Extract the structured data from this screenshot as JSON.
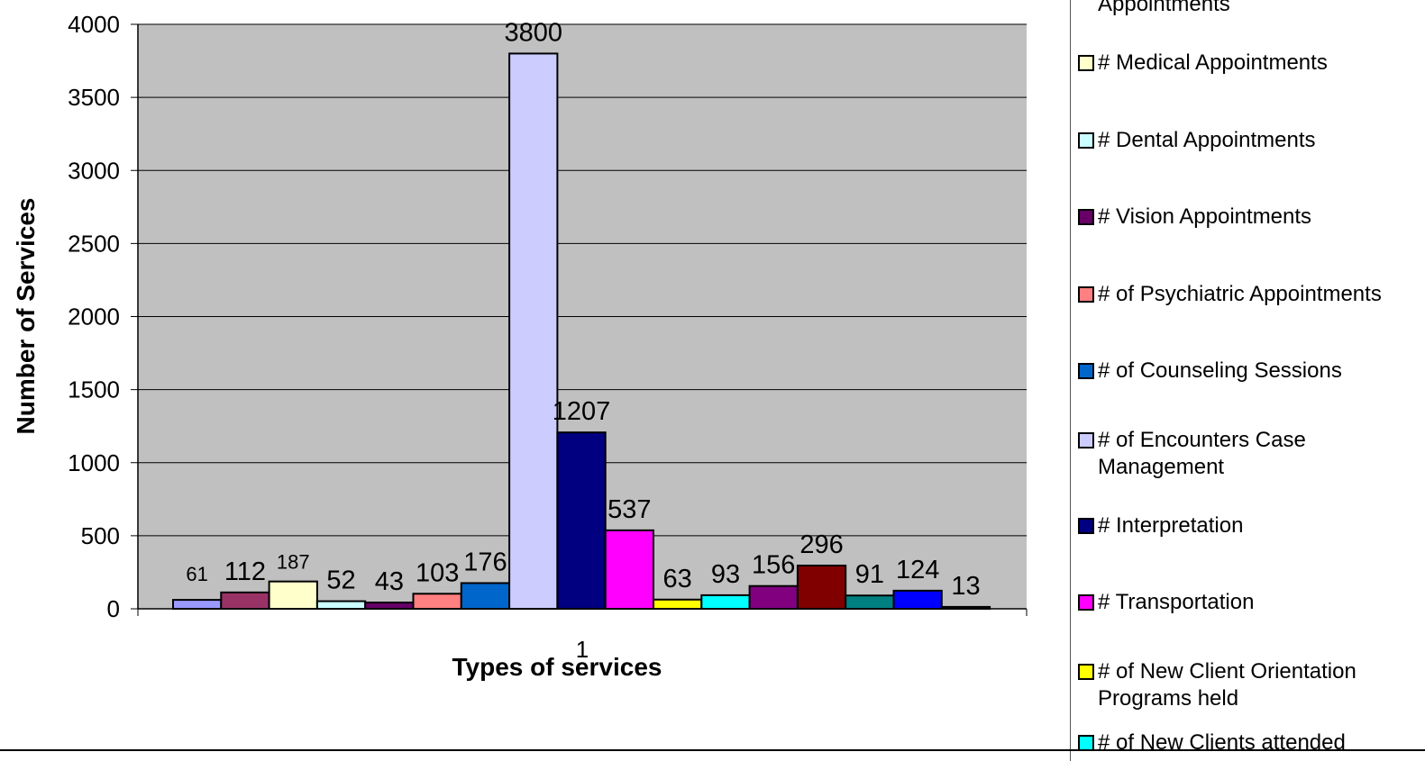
{
  "chart_data": {
    "type": "bar",
    "categories": [
      "1"
    ],
    "xlabel": "Types of services",
    "ylabel": "Number of Services",
    "ylim": [
      0,
      4000
    ],
    "yticks": [
      0,
      500,
      1000,
      1500,
      2000,
      2500,
      3000,
      3500,
      4000
    ],
    "grid": true,
    "legend_position": "right",
    "plot_background": "#c0c0c0",
    "series": [
      {
        "name": "Appointments",
        "value": 61,
        "color": "#9999ff"
      },
      {
        "name": "",
        "value": 112,
        "color": "#993366"
      },
      {
        "name": "# Medical Appointments",
        "value": 187,
        "color": "#ffffcc"
      },
      {
        "name": "# Dental  Appointments",
        "value": 52,
        "color": "#ccffff"
      },
      {
        "name": "# Vision Appointments",
        "value": 43,
        "color": "#660066"
      },
      {
        "name": "# of Psychiatric Appointments",
        "value": 103,
        "color": "#ff8080"
      },
      {
        "name": "# of Counseling Sessions",
        "value": 176,
        "color": "#0066cc"
      },
      {
        "name": "# of Encounters Case Management",
        "value": 3800,
        "color": "#ccccff"
      },
      {
        "name": "#  Interpretation",
        "value": 1207,
        "color": "#000080"
      },
      {
        "name": "# Transportation",
        "value": 537,
        "color": "#ff00ff"
      },
      {
        "name": "# of New Client Orientation Programs held",
        "value": 63,
        "color": "#ffff00"
      },
      {
        "name": "# of New Clients attended",
        "value": 93,
        "color": "#00ffff"
      },
      {
        "name": "",
        "value": 156,
        "color": "#800080"
      },
      {
        "name": "",
        "value": 296,
        "color": "#800000"
      },
      {
        "name": "",
        "value": 91,
        "color": "#008080"
      },
      {
        "name": "",
        "value": 124,
        "color": "#0000ff"
      },
      {
        "name": "",
        "value": 13,
        "color": "#333333"
      }
    ]
  },
  "legend": {
    "items": [
      {
        "label": "Appointments",
        "color": "#9999ff",
        "swatch": false
      },
      {
        "label": "# Medical Appointments",
        "color": "#ffffcc",
        "swatch": true
      },
      {
        "label": "# Dental  Appointments",
        "color": "#ccffff",
        "swatch": true
      },
      {
        "label": "# Vision Appointments",
        "color": "#660066",
        "swatch": true
      },
      {
        "label": "# of Psychiatric Appointments",
        "color": "#ff8080",
        "swatch": true
      },
      {
        "label": "# of Counseling Sessions",
        "color": "#0066cc",
        "swatch": true
      },
      {
        "label": "# of Encounters Case Management",
        "color": "#ccccff",
        "swatch": true
      },
      {
        "label": "#  Interpretation",
        "color": "#000080",
        "swatch": true
      },
      {
        "label": "# Transportation",
        "color": "#ff00ff",
        "swatch": true
      },
      {
        "label": "# of New Client Orientation Programs held",
        "color": "#ffff00",
        "swatch": true
      },
      {
        "label": "# of New Clients attended",
        "color": "#00ffff",
        "swatch": true
      }
    ]
  }
}
